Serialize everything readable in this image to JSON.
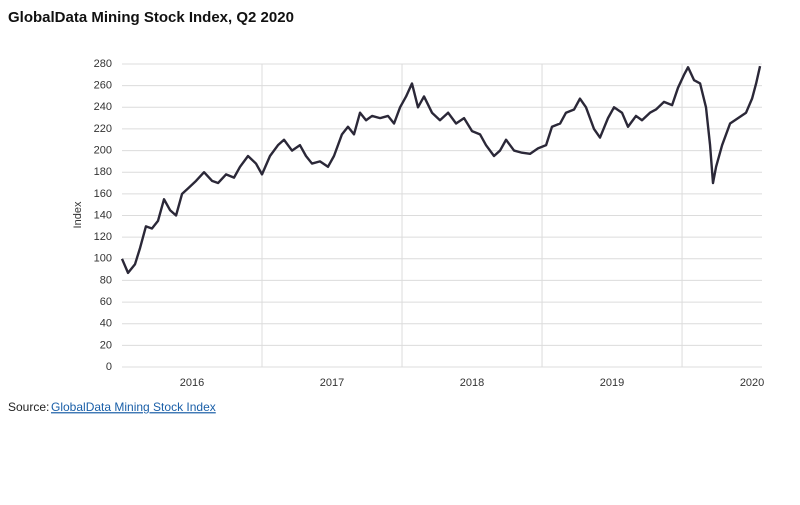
{
  "chart_data": {
    "type": "line",
    "title": "GlobalData Mining Stock Index, Q2 2020",
    "ylabel": "Index",
    "source_label": "Source:",
    "source_link": "GlobalData Mining Stock Index",
    "xlim": [
      2016,
      2020.571
    ],
    "xticks": [
      {
        "value": 2016.5,
        "label": "2016"
      },
      {
        "value": 2017.5,
        "label": "2017"
      },
      {
        "value": 2018.5,
        "label": "2018"
      },
      {
        "value": 2019.5,
        "label": "2019"
      },
      {
        "value": 2020.5,
        "label": "2020"
      }
    ],
    "xgrid": [
      2017,
      2018,
      2019,
      2020
    ],
    "ylim": [
      0,
      280
    ],
    "yticks": [
      0,
      20,
      40,
      60,
      80,
      100,
      120,
      140,
      160,
      180,
      200,
      220,
      240,
      260,
      280
    ],
    "grid": true,
    "series": [
      {
        "name": "GlobalData Mining Stock Index",
        "color": "#2b2838",
        "x": [
          2016.0,
          2016.043,
          2016.093,
          2016.129,
          2016.171,
          2016.214,
          2016.257,
          2016.3,
          2016.343,
          2016.386,
          2016.429,
          2016.471,
          2016.529,
          2016.586,
          2016.643,
          2016.686,
          2016.743,
          2016.8,
          2016.843,
          2016.9,
          2016.957,
          2017.0,
          2017.057,
          2017.114,
          2017.157,
          2017.214,
          2017.271,
          2017.314,
          2017.357,
          2017.414,
          2017.471,
          2017.514,
          2017.571,
          2017.614,
          2017.657,
          2017.7,
          2017.743,
          2017.786,
          2017.843,
          2017.9,
          2017.943,
          2017.986,
          2018.029,
          2018.071,
          2018.114,
          2018.157,
          2018.214,
          2018.271,
          2018.329,
          2018.386,
          2018.443,
          2018.5,
          2018.557,
          2018.6,
          2018.657,
          2018.7,
          2018.743,
          2018.8,
          2018.857,
          2018.914,
          2018.971,
          2019.029,
          2019.071,
          2019.129,
          2019.171,
          2019.229,
          2019.271,
          2019.314,
          2019.371,
          2019.414,
          2019.471,
          2019.514,
          2019.571,
          2019.614,
          2019.671,
          2019.714,
          2019.771,
          2019.814,
          2019.871,
          2019.929,
          2019.971,
          2020.014,
          2020.043,
          2020.086,
          2020.129,
          2020.171,
          2020.2,
          2020.221,
          2020.243,
          2020.286,
          2020.343,
          2020.4,
          2020.457,
          2020.5,
          2020.529,
          2020.557
        ],
        "values": [
          100,
          87,
          95,
          110,
          130,
          128,
          135,
          155,
          145,
          140,
          160,
          165,
          172,
          180,
          172,
          170,
          178,
          175,
          185,
          195,
          188,
          178,
          195,
          205,
          210,
          200,
          205,
          195,
          188,
          190,
          185,
          195,
          215,
          222,
          215,
          235,
          228,
          232,
          230,
          232,
          225,
          240,
          250,
          262,
          240,
          250,
          235,
          228,
          235,
          225,
          230,
          218,
          215,
          205,
          195,
          200,
          210,
          200,
          198,
          197,
          202,
          205,
          222,
          225,
          235,
          238,
          248,
          240,
          220,
          212,
          230,
          240,
          235,
          222,
          232,
          228,
          235,
          238,
          245,
          242,
          258,
          270,
          277,
          265,
          262,
          240,
          205,
          170,
          185,
          205,
          225,
          230,
          235,
          248,
          262,
          278
        ]
      }
    ]
  }
}
